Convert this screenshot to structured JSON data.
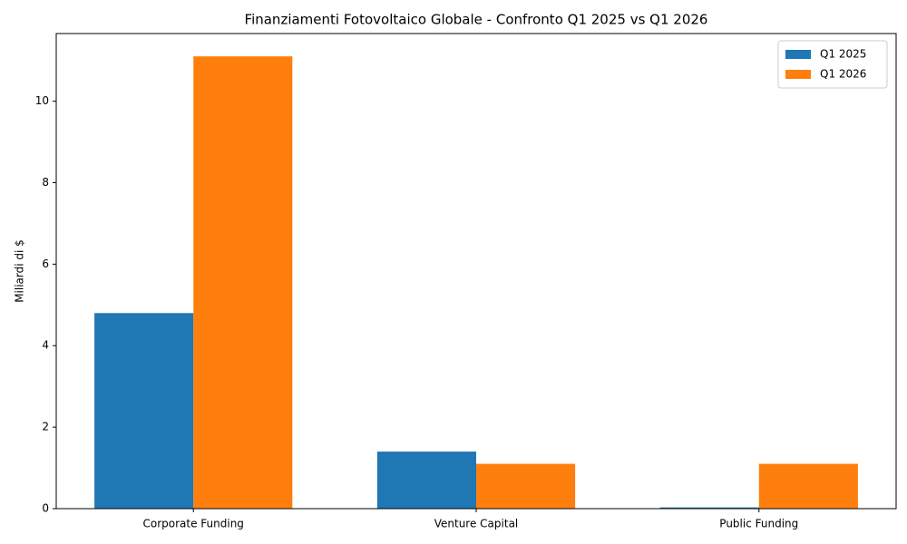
{
  "chart_data": {
    "type": "bar",
    "title": "Finanziamenti Fotovoltaico Globale - Confronto Q1 2025 vs Q1 2026",
    "y_label": "Miliardi di $",
    "categories": [
      "Corporate Funding",
      "Venture Capital",
      "Public Funding"
    ],
    "series": [
      {
        "name": "Q1 2025",
        "color": "#1f77b4",
        "values": [
          4.8,
          1.4,
          0.03
        ]
      },
      {
        "name": "Q1 2026",
        "color": "#ff7f0e",
        "values": [
          11.1,
          1.1,
          1.1
        ]
      }
    ],
    "ylim": [
      0,
      11.66
    ],
    "yticks": [
      0,
      2,
      4,
      6,
      8,
      10
    ],
    "legend": "upper right",
    "grid": false
  }
}
